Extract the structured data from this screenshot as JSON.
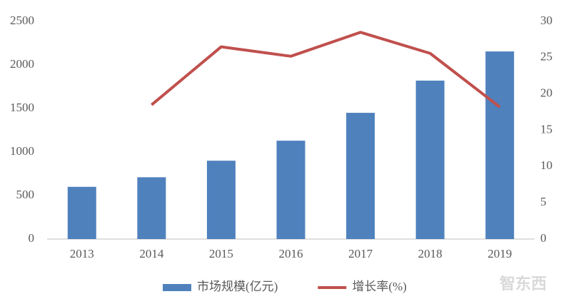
{
  "chart_data": {
    "type": "bar-line",
    "categories": [
      "2013",
      "2014",
      "2015",
      "2016",
      "2017",
      "2018",
      "2019"
    ],
    "series": [
      {
        "name": "市场规模(亿元)",
        "type": "bar",
        "color": "#4f81bd",
        "values": [
          600,
          710,
          900,
          1130,
          1450,
          1820,
          2155
        ]
      },
      {
        "name": "增长率(%)",
        "type": "line",
        "color": "#c0504d",
        "axis": "y2",
        "values": [
          null,
          18.5,
          26.5,
          25.2,
          28.5,
          25.6,
          18.2
        ]
      }
    ],
    "ylim": [
      0,
      2500
    ],
    "yticks": [
      0,
      500,
      1000,
      1500,
      2000,
      2500
    ],
    "y2lim": [
      0,
      30
    ],
    "y2ticks": [
      0,
      5,
      10,
      15,
      20,
      25,
      30
    ],
    "legend": "bottom",
    "grid": false,
    "watermark": "智东西"
  }
}
